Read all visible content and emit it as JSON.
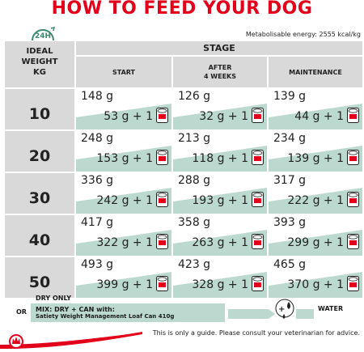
{
  "title": "HOW TO FEED YOUR DOG",
  "badge": "24H",
  "energy": "Metabolisable energy: 2555 kcal/kg",
  "headers": {
    "ideal_weight": [
      "IDEAL",
      "WEIGHT",
      "KG"
    ],
    "stage": "STAGE",
    "start": "START",
    "after": [
      "AFTER",
      "4 WEEKS"
    ],
    "maintenance": "MAINTENANCE"
  },
  "rows": [
    {
      "kg": "10",
      "cells": [
        {
          "dry": "148 g",
          "mix": "53 g + 1"
        },
        {
          "dry": "126 g",
          "mix": "32 g + 1"
        },
        {
          "dry": "139 g",
          "mix": "44 g + 1"
        }
      ]
    },
    {
      "kg": "20",
      "cells": [
        {
          "dry": "248 g",
          "mix": "153 g + 1"
        },
        {
          "dry": "213 g",
          "mix": "118 g + 1"
        },
        {
          "dry": "234 g",
          "mix": "139 g + 1"
        }
      ]
    },
    {
      "kg": "30",
      "cells": [
        {
          "dry": "336 g",
          "mix": "242 g + 1"
        },
        {
          "dry": "288 g",
          "mix": "193 g + 1"
        },
        {
          "dry": "317 g",
          "mix": "222 g + 1"
        }
      ]
    },
    {
      "kg": "40",
      "cells": [
        {
          "dry": "417 g",
          "mix": "322 g + 1"
        },
        {
          "dry": "358 g",
          "mix": "263 g + 1"
        },
        {
          "dry": "393 g",
          "mix": "299 g + 1"
        }
      ]
    },
    {
      "kg": "50",
      "cells": [
        {
          "dry": "493 g",
          "mix": "399 g + 1"
        },
        {
          "dry": "423 g",
          "mix": "328 g + 1"
        },
        {
          "dry": "465 g",
          "mix": "370 g + 1"
        }
      ]
    }
  ],
  "footer": {
    "dry_only": "DRY ONLY",
    "or": "OR",
    "mix": "MIX: DRY + CAN with:",
    "product": "Satiety Weight Management Loaf Can 410g",
    "water": "WATER",
    "guide": "This is only a guide. Please consult your veterinarian for advice."
  },
  "colors": {
    "red": "#e2001a",
    "green": "#bcd9d0",
    "grey": "#d9d9d9",
    "badge": "#3a8a6e"
  }
}
